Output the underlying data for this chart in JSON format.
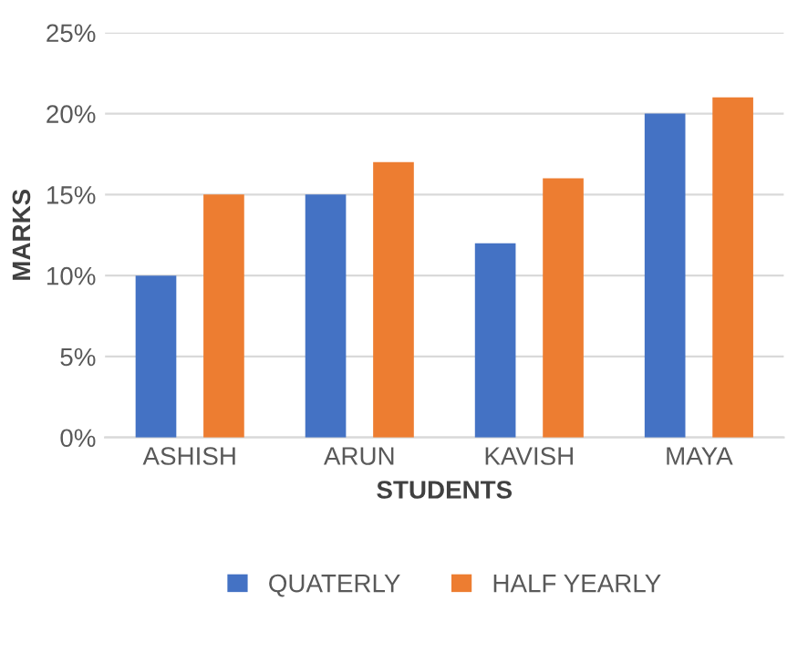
{
  "chart_data": {
    "type": "bar",
    "xlabel": "STUDENTS",
    "ylabel": "MARKS",
    "categories": [
      "ASHISH",
      "ARUN",
      "KAVISH",
      "MAYA"
    ],
    "series": [
      {
        "name": "QUATERLY",
        "color": "#4472c4",
        "values": [
          10,
          15,
          12,
          20
        ]
      },
      {
        "name": "HALF YEARLY",
        "color": "#ed7d31",
        "values": [
          15,
          17,
          16,
          21
        ]
      }
    ],
    "ylim": [
      0,
      25
    ],
    "yticks": [
      {
        "value": 0,
        "label": "0%"
      },
      {
        "value": 5,
        "label": "5%"
      },
      {
        "value": 10,
        "label": "10%"
      },
      {
        "value": 15,
        "label": "15%"
      },
      {
        "value": 20,
        "label": "20%"
      },
      {
        "value": 25,
        "label": "25%"
      }
    ],
    "grid": "y",
    "legend": "bottom"
  }
}
